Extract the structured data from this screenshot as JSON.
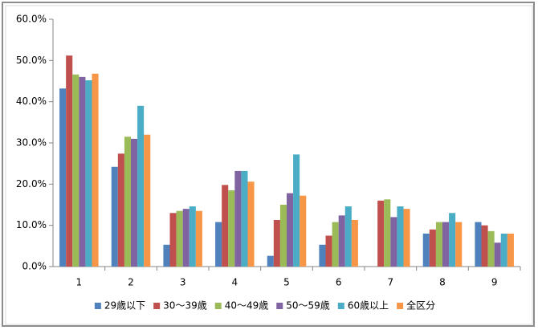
{
  "chart_data": {
    "type": "bar",
    "categories": [
      "1",
      "2",
      "3",
      "4",
      "5",
      "6",
      "7",
      "8",
      "9"
    ],
    "series": [
      {
        "name": "29歳以下",
        "color": "#4F81BD",
        "values": [
          43.2,
          24.2,
          5.3,
          10.8,
          2.6,
          5.3,
          0,
          8.0,
          10.8
        ]
      },
      {
        "name": "30～39歳",
        "color": "#C0504D",
        "values": [
          51.2,
          27.4,
          13.0,
          19.8,
          11.3,
          7.5,
          16.0,
          9.0,
          10.0
        ]
      },
      {
        "name": "40～49歳",
        "color": "#9BBB59",
        "values": [
          46.6,
          31.5,
          13.5,
          18.5,
          15.0,
          10.8,
          16.3,
          10.8,
          8.6
        ]
      },
      {
        "name": "50～59歳",
        "color": "#8064A2",
        "values": [
          46.0,
          31.0,
          14.0,
          23.2,
          17.8,
          12.4,
          12.0,
          10.8,
          5.8
        ]
      },
      {
        "name": "60歳以上",
        "color": "#4BACC6",
        "values": [
          45.2,
          39.0,
          14.6,
          23.2,
          27.2,
          14.6,
          14.6,
          13.0,
          8.0
        ]
      },
      {
        "name": "全区分",
        "color": "#F79646",
        "values": [
          46.8,
          32.0,
          13.5,
          20.6,
          17.2,
          11.3,
          14.0,
          10.8,
          8.0
        ]
      }
    ],
    "ylim": [
      0,
      60
    ],
    "yticks": [
      {
        "value": 0,
        "label": "0.0%"
      },
      {
        "value": 10,
        "label": "10.0%"
      },
      {
        "value": 20,
        "label": "20.0%"
      },
      {
        "value": 30,
        "label": "30.0%"
      },
      {
        "value": 40,
        "label": "40.0%"
      },
      {
        "value": 50,
        "label": "50.0%"
      },
      {
        "value": 60,
        "label": "60.0%"
      }
    ],
    "legend": "bottom"
  }
}
